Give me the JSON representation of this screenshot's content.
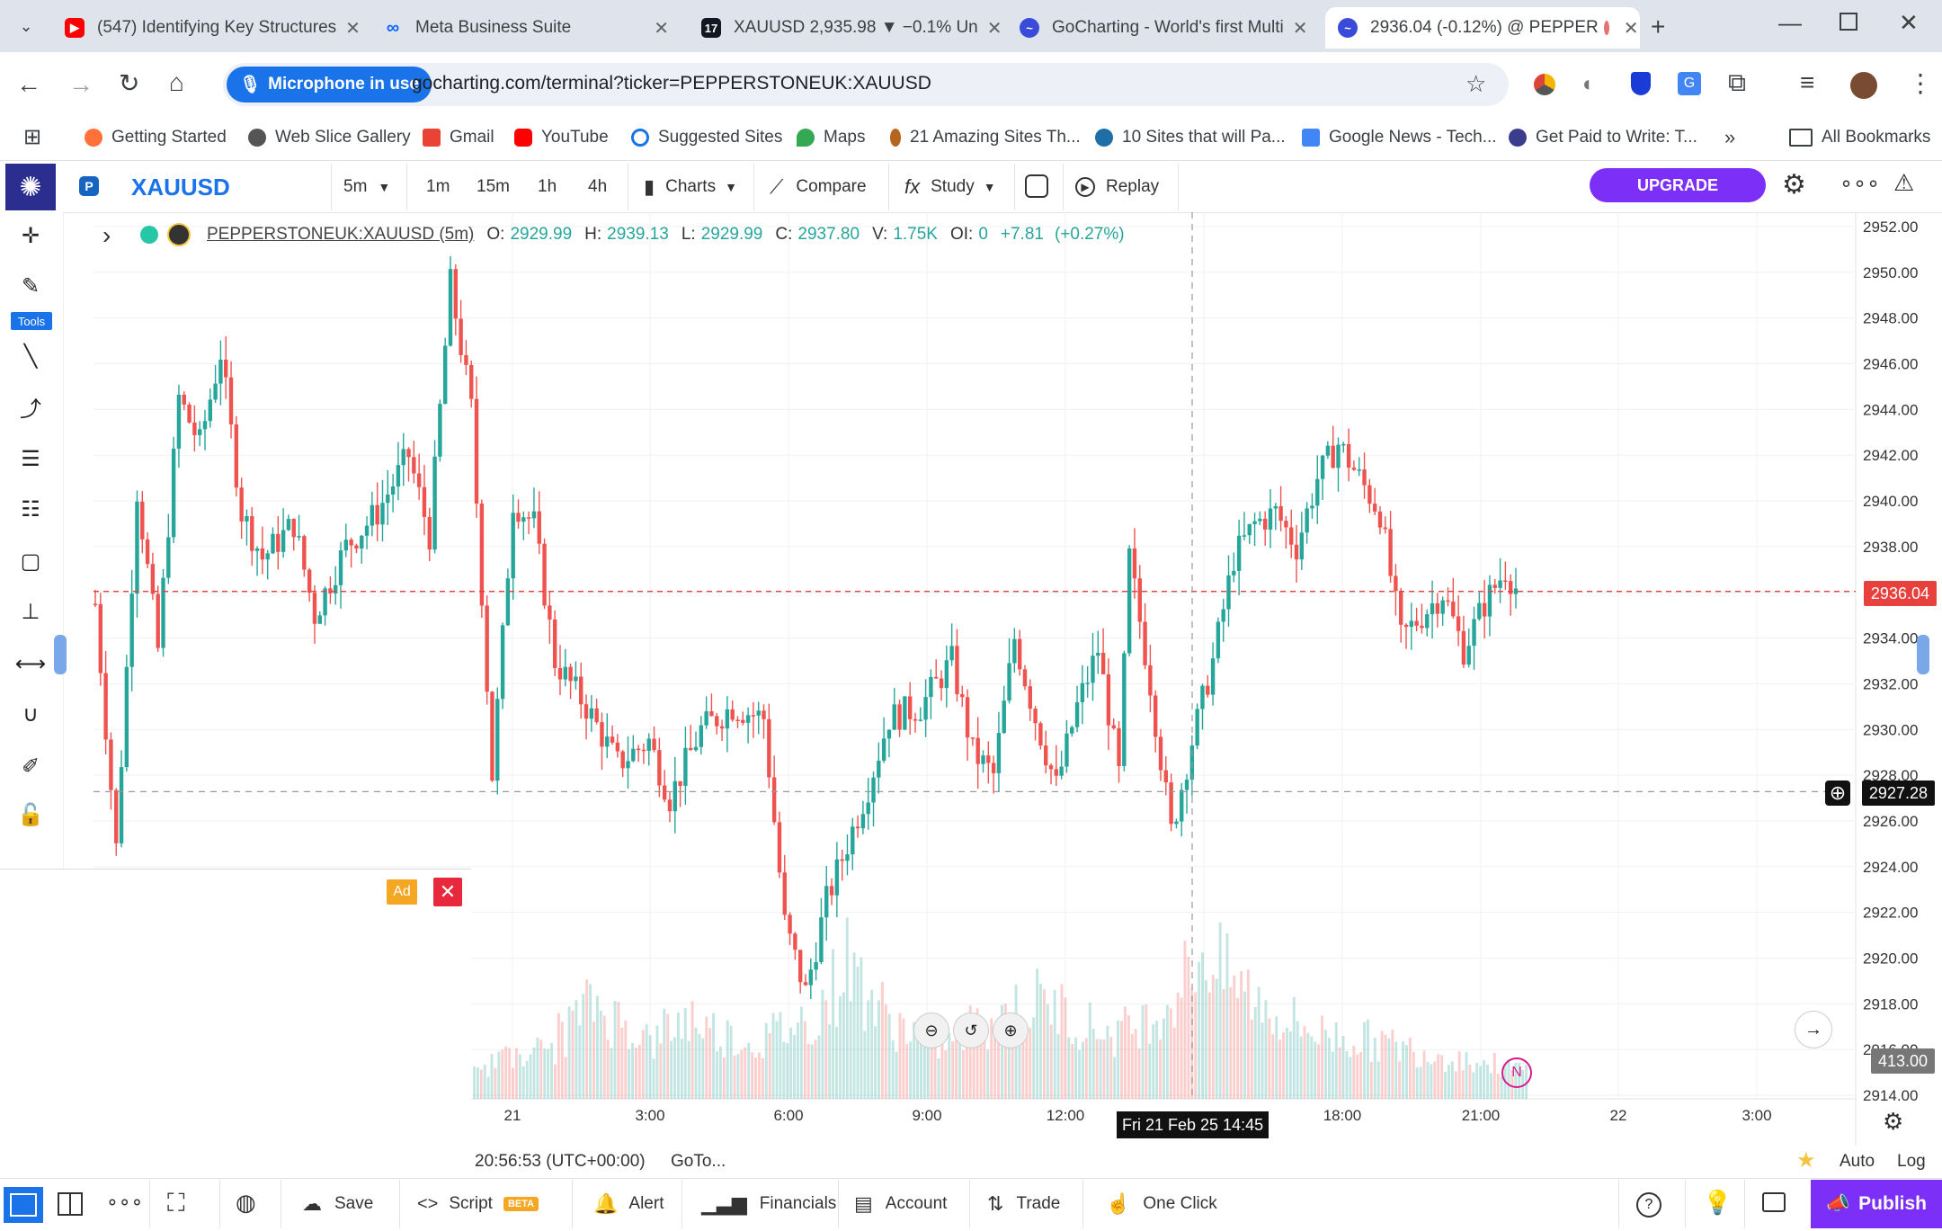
{
  "browser": {
    "tabs": [
      {
        "title": "(547) Identifying Key Structures",
        "icon": "youtube-icon",
        "color": "#ff0000"
      },
      {
        "title": "Meta Business Suite",
        "icon": "meta-icon",
        "color": "#0866ff"
      },
      {
        "title": "XAUUSD 2,935.98 ▼ −0.1% Un",
        "icon": "tradingview-icon",
        "color": "#131722"
      },
      {
        "title": "GoCharting - World's first Multi",
        "icon": "gocharting-icon",
        "color": "#3a4ad9"
      },
      {
        "title": "2936.04 (-0.12%) @ PEPPER",
        "icon": "gocharting-icon",
        "color": "#3a4ad9"
      }
    ],
    "mic_label": "Microphone in use",
    "url": "gocharting.com/terminal?ticker=PEPPERSTONEUK:XAUUSD",
    "bookmarks": [
      {
        "label": "Getting Started",
        "color": "#ff7139"
      },
      {
        "label": "Web Slice Gallery",
        "color": "#555555"
      },
      {
        "label": "Gmail",
        "color": "#ea4335"
      },
      {
        "label": "YouTube",
        "color": "#ff0000"
      },
      {
        "label": "Suggested Sites",
        "color": "#1a73e8"
      },
      {
        "label": "Maps",
        "color": "#34a853"
      },
      {
        "label": "21 Amazing Sites Th...",
        "color": "#b5651d"
      },
      {
        "label": "10 Sites that will Pa...",
        "color": "#1d6fa5"
      },
      {
        "label": "Google News - Tech...",
        "color": "#4285f4"
      },
      {
        "label": "Get Paid to Write: T...",
        "color": "#3c3c8c"
      }
    ],
    "all_bookmarks": "All Bookmarks"
  },
  "toolbar": {
    "symbol": "XAUUSD",
    "interval": "5m",
    "quick_intervals": [
      "1m",
      "15m",
      "1h",
      "4h"
    ],
    "charts": "Charts",
    "compare": "Compare",
    "study": "Study",
    "replay": "Replay",
    "upgrade": "UPGRADE",
    "tools_label": "Tools"
  },
  "legend": {
    "ticker": "PEPPERSTONEUK:XAUUSD (5m)",
    "o_label": "O:",
    "o": "2929.99",
    "h_label": "H:",
    "h": "2939.13",
    "l_label": "L:",
    "l": "2929.99",
    "c_label": "C:",
    "c": "2937.80",
    "v_label": "V:",
    "v": "1.75K",
    "oi_label": "OI:",
    "oi": "0",
    "change": "+7.81",
    "change_pct": "(+0.27%)"
  },
  "chart_data": {
    "type": "candlestick",
    "symbol": "PEPPERSTONEUK:XAUUSD",
    "interval": "5m",
    "ylim": [
      2913,
      2953
    ],
    "y_ticks": [
      "2952.00",
      "2950.00",
      "2948.00",
      "2946.00",
      "2944.00",
      "2942.00",
      "2940.00",
      "2938.00",
      "2936.00",
      "2934.00",
      "2932.00",
      "2930.00",
      "2928.00",
      "2926.00",
      "2924.00",
      "2922.00",
      "2920.00",
      "2918.00",
      "2916.00",
      "2914.00"
    ],
    "x_ticks": [
      "21",
      "3:00",
      "6:00",
      "9:00",
      "12:00",
      "15:00",
      "18:00",
      "21:00",
      "22",
      "3:00"
    ],
    "last_price": "2936.04",
    "crosshair_price": "2927.28",
    "crosshair_time": "Fri 21 Feb 25 14:45",
    "volume_label": "413.00",
    "up_color": "#26a69a",
    "down_color": "#ef5350",
    "price_path": [
      [
        0,
        2935.5
      ],
      [
        4,
        2924.8
      ],
      [
        8,
        2940.5
      ],
      [
        12,
        2933.5
      ],
      [
        16,
        2944.5
      ],
      [
        20,
        2942.5
      ],
      [
        24,
        2946.5
      ],
      [
        28,
        2939.5
      ],
      [
        32,
        2937.5
      ],
      [
        38,
        2939
      ],
      [
        42,
        2935
      ],
      [
        48,
        2938
      ],
      [
        54,
        2939.5
      ],
      [
        60,
        2942
      ],
      [
        64,
        2938.5
      ],
      [
        68,
        2949.5
      ],
      [
        72,
        2944
      ],
      [
        76,
        2928
      ],
      [
        80,
        2940
      ],
      [
        84,
        2939
      ],
      [
        88,
        2933
      ],
      [
        94,
        2931
      ],
      [
        100,
        2928.5
      ],
      [
        106,
        2929.5
      ],
      [
        110,
        2927
      ],
      [
        116,
        2930
      ],
      [
        122,
        2931
      ],
      [
        128,
        2930.5
      ],
      [
        132,
        2921.5
      ],
      [
        136,
        2918.5
      ],
      [
        140,
        2922.5
      ],
      [
        144,
        2925
      ],
      [
        148,
        2927.5
      ],
      [
        152,
        2930.5
      ],
      [
        158,
        2931
      ],
      [
        164,
        2933
      ],
      [
        168,
        2929
      ],
      [
        172,
        2928
      ],
      [
        176,
        2934
      ],
      [
        180,
        2930.5
      ],
      [
        184,
        2927.5
      ],
      [
        188,
        2931
      ],
      [
        192,
        2933.5
      ],
      [
        196,
        2928
      ],
      [
        198,
        2937.5
      ],
      [
        202,
        2932
      ],
      [
        206,
        2925.5
      ],
      [
        210,
        2929.5
      ],
      [
        214,
        2933
      ],
      [
        218,
        2937.5
      ],
      [
        222,
        2939
      ],
      [
        226,
        2939.5
      ],
      [
        230,
        2938
      ],
      [
        234,
        2941
      ],
      [
        238,
        2942.5
      ],
      [
        242,
        2941
      ],
      [
        246,
        2939.5
      ],
      [
        250,
        2934
      ],
      [
        254,
        2935
      ],
      [
        258,
        2936
      ],
      [
        262,
        2933.5
      ],
      [
        266,
        2935.5
      ],
      [
        270,
        2937
      ],
      [
        272,
        2936.2
      ]
    ],
    "volumes": [
      30,
      42,
      55,
      48,
      62,
      70,
      58,
      65,
      80,
      95,
      110,
      120,
      105,
      98,
      90,
      85,
      75,
      70,
      88,
      92,
      100,
      96,
      85,
      80,
      78,
      72,
      68,
      74,
      80,
      86,
      90,
      95,
      100,
      120,
      140,
      170,
      150,
      130,
      110,
      95,
      90,
      85,
      80,
      76,
      70,
      75,
      82,
      88,
      92,
      98,
      105,
      110,
      115,
      120,
      118,
      112,
      100,
      95,
      90,
      86,
      80,
      85,
      90,
      95,
      105,
      115,
      130,
      150,
      170,
      180,
      160,
      150,
      140,
      130,
      120,
      110,
      100,
      95,
      90,
      85,
      80,
      78,
      76,
      74,
      72,
      70,
      68,
      65,
      62,
      60,
      58,
      55,
      52,
      50,
      48,
      45,
      42,
      40,
      38,
      35
    ]
  },
  "status": {
    "time": "20:56:53 (UTC+00:00)",
    "goto": "GoTo...",
    "auto": "Auto",
    "log": "Log"
  },
  "bottom": {
    "save": "Save",
    "script": "Script",
    "beta": "BETA",
    "alert": "Alert",
    "financials": "Financials",
    "account": "Account",
    "trade": "Trade",
    "one_click": "One Click",
    "publish": "Publish"
  },
  "ad": {
    "label": "Ad"
  }
}
